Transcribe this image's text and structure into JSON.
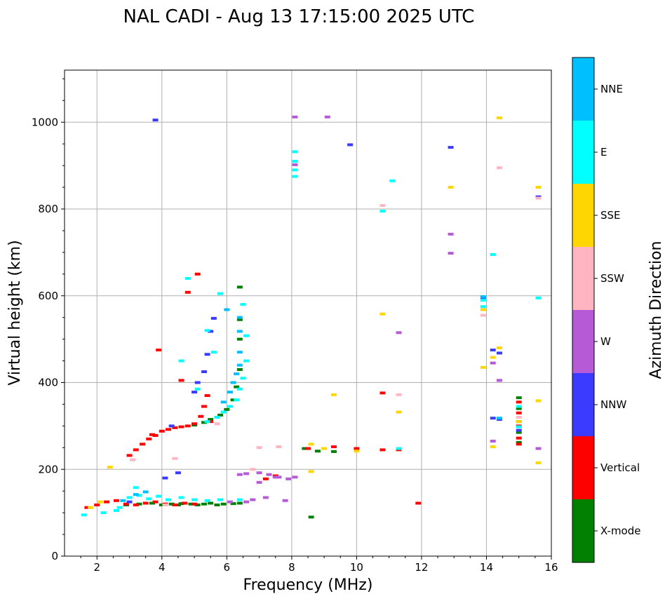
{
  "chart_data": {
    "type": "scatter",
    "title": "NAL CADI - Aug 13 17:15:00 2025 UTC",
    "xlabel": "Frequency (MHz)",
    "ylabel": "Virtual height (km)",
    "xlim": [
      1,
      16
    ],
    "ylim": [
      0,
      1120
    ],
    "xticks": [
      2,
      4,
      6,
      8,
      10,
      12,
      14,
      16
    ],
    "yticks": [
      0,
      200,
      400,
      600,
      800,
      1000
    ],
    "grid": true,
    "colorbar": {
      "label": "Azimuth Direction",
      "categories": [
        {
          "name": "X-mode",
          "color": "#008000"
        },
        {
          "name": "Vertical",
          "color": "#ff0000"
        },
        {
          "name": "NNW",
          "color": "#3b3bff"
        },
        {
          "name": "W",
          "color": "#b65ad8"
        },
        {
          "name": "SSW",
          "color": "#ffb6c1"
        },
        {
          "name": "SSE",
          "color": "#ffd700"
        },
        {
          "name": "E",
          "color": "#00ffff"
        },
        {
          "name": "NNE",
          "color": "#00bfff"
        }
      ]
    },
    "series": [
      {
        "name": "X-mode",
        "points": [
          [
            2.9,
            118
          ],
          [
            3.3,
            120
          ],
          [
            3.7,
            122
          ],
          [
            4.0,
            118
          ],
          [
            4.3,
            120
          ],
          [
            4.6,
            121
          ],
          [
            4.9,
            120
          ],
          [
            5.1,
            118
          ],
          [
            5.3,
            120
          ],
          [
            5.5,
            122
          ],
          [
            5.7,
            118
          ],
          [
            5.9,
            120
          ],
          [
            6.2,
            121
          ],
          [
            6.4,
            122
          ],
          [
            5.0,
            302
          ],
          [
            5.3,
            308
          ],
          [
            5.5,
            315
          ],
          [
            5.8,
            325
          ],
          [
            6.0,
            338
          ],
          [
            6.2,
            360
          ],
          [
            6.3,
            390
          ],
          [
            6.4,
            430
          ],
          [
            6.4,
            500
          ],
          [
            6.4,
            545
          ],
          [
            6.4,
            620
          ],
          [
            8.4,
            248
          ],
          [
            8.8,
            242
          ],
          [
            9.3,
            241
          ],
          [
            8.6,
            90
          ],
          [
            15.0,
            262
          ],
          [
            15.0,
            285
          ],
          [
            15.0,
            310
          ],
          [
            15.0,
            340
          ],
          [
            15.0,
            365
          ],
          [
            4.7,
            122
          ],
          [
            4.5,
            118
          ]
        ]
      },
      {
        "name": "Vertical",
        "points": [
          [
            1.7,
            112
          ],
          [
            2.0,
            118
          ],
          [
            2.3,
            125
          ],
          [
            2.6,
            128
          ],
          [
            2.9,
            120
          ],
          [
            3.2,
            118
          ],
          [
            3.5,
            122
          ],
          [
            3.8,
            125
          ],
          [
            4.1,
            120
          ],
          [
            4.4,
            118
          ],
          [
            4.7,
            122
          ],
          [
            5.0,
            120
          ],
          [
            3.0,
            232
          ],
          [
            3.2,
            245
          ],
          [
            3.4,
            258
          ],
          [
            3.6,
            270
          ],
          [
            3.8,
            278
          ],
          [
            4.0,
            288
          ],
          [
            4.2,
            292
          ],
          [
            4.4,
            296
          ],
          [
            4.6,
            298
          ],
          [
            4.8,
            300
          ],
          [
            5.0,
            305
          ],
          [
            5.2,
            322
          ],
          [
            5.3,
            345
          ],
          [
            5.4,
            370
          ],
          [
            3.9,
            475
          ],
          [
            4.6,
            405
          ],
          [
            4.8,
            608
          ],
          [
            5.1,
            650
          ],
          [
            7.2,
            178
          ],
          [
            7.5,
            185
          ],
          [
            8.5,
            248
          ],
          [
            9.3,
            252
          ],
          [
            10.0,
            248
          ],
          [
            10.8,
            245
          ],
          [
            10.8,
            376
          ],
          [
            11.3,
            245
          ],
          [
            11.9,
            122
          ],
          [
            15.0,
            258
          ],
          [
            15.0,
            272
          ],
          [
            15.0,
            300
          ],
          [
            15.0,
            330
          ],
          [
            15.0,
            355
          ],
          [
            5.5,
            310
          ],
          [
            3.7,
            280
          ]
        ]
      },
      {
        "name": "NNW",
        "points": [
          [
            3.8,
            1005
          ],
          [
            9.8,
            948
          ],
          [
            12.9,
            942
          ],
          [
            13.9,
            595
          ],
          [
            14.2,
            475
          ],
          [
            14.4,
            468
          ],
          [
            14.2,
            318
          ],
          [
            14.4,
            315
          ],
          [
            5.0,
            378
          ],
          [
            5.1,
            400
          ],
          [
            5.3,
            425
          ],
          [
            5.4,
            465
          ],
          [
            5.5,
            518
          ],
          [
            5.6,
            548
          ],
          [
            3.0,
            125
          ],
          [
            4.1,
            180
          ],
          [
            4.5,
            192
          ],
          [
            15.6,
            828
          ],
          [
            15.0,
            290
          ],
          [
            4.3,
            300
          ]
        ]
      },
      {
        "name": "W",
        "points": [
          [
            8.1,
            1012
          ],
          [
            9.1,
            1012
          ],
          [
            8.1,
            902
          ],
          [
            12.9,
            742
          ],
          [
            12.9,
            698
          ],
          [
            14.4,
            405
          ],
          [
            14.2,
            445
          ],
          [
            14.2,
            265
          ],
          [
            6.6,
            190
          ],
          [
            7.0,
            192
          ],
          [
            7.3,
            188
          ],
          [
            7.6,
            182
          ],
          [
            7.9,
            178
          ],
          [
            6.8,
            130
          ],
          [
            7.2,
            135
          ],
          [
            6.1,
            125
          ],
          [
            6.6,
            125
          ],
          [
            15.6,
            248
          ],
          [
            6.4,
            188
          ],
          [
            7.5,
            182
          ],
          [
            7.8,
            128
          ],
          [
            11.3,
            515
          ],
          [
            7.0,
            170
          ],
          [
            8.1,
            182
          ]
        ]
      },
      {
        "name": "SSW",
        "points": [
          [
            10.8,
            808
          ],
          [
            14.4,
            895
          ],
          [
            13.9,
            555
          ],
          [
            15.6,
            825
          ],
          [
            4.4,
            225
          ],
          [
            3.1,
            222
          ],
          [
            7.0,
            250
          ],
          [
            7.6,
            252
          ],
          [
            4.1,
            118
          ],
          [
            5.7,
            305
          ],
          [
            11.3,
            372
          ],
          [
            15.0,
            320
          ],
          [
            6.8,
            200
          ]
        ]
      },
      {
        "name": "SSE",
        "points": [
          [
            14.4,
            1010
          ],
          [
            12.9,
            850
          ],
          [
            15.6,
            850
          ],
          [
            15.6,
            358
          ],
          [
            15.6,
            215
          ],
          [
            14.4,
            480
          ],
          [
            14.2,
            458
          ],
          [
            13.9,
            435
          ],
          [
            14.2,
            252
          ],
          [
            8.6,
            258
          ],
          [
            9.0,
            248
          ],
          [
            9.3,
            372
          ],
          [
            11.3,
            332
          ],
          [
            8.6,
            195
          ],
          [
            1.8,
            112
          ],
          [
            2.1,
            125
          ],
          [
            10.0,
            242
          ],
          [
            10.8,
            558
          ],
          [
            2.4,
            205
          ],
          [
            15.0,
            310
          ],
          [
            13.9,
            568
          ]
        ]
      },
      {
        "name": "E",
        "points": [
          [
            11.1,
            865
          ],
          [
            10.8,
            795
          ],
          [
            14.2,
            695
          ],
          [
            15.6,
            595
          ],
          [
            13.9,
            575
          ],
          [
            13.9,
            590
          ],
          [
            5.8,
            605
          ],
          [
            6.5,
            580
          ],
          [
            6.6,
            508
          ],
          [
            6.6,
            450
          ],
          [
            6.5,
            410
          ],
          [
            6.4,
            385
          ],
          [
            6.3,
            360
          ],
          [
            6.1,
            345
          ],
          [
            5.9,
            332
          ],
          [
            5.7,
            320
          ],
          [
            5.4,
            310
          ],
          [
            1.6,
            95
          ],
          [
            2.2,
            100
          ],
          [
            2.7,
            112
          ],
          [
            3.0,
            135
          ],
          [
            3.3,
            140
          ],
          [
            3.6,
            132
          ],
          [
            3.9,
            138
          ],
          [
            4.2,
            130
          ],
          [
            4.6,
            135
          ],
          [
            5.0,
            130
          ],
          [
            5.4,
            128
          ],
          [
            5.8,
            130
          ],
          [
            6.4,
            130
          ],
          [
            8.1,
            875
          ],
          [
            8.1,
            890
          ],
          [
            8.1,
            910
          ],
          [
            8.1,
            932
          ],
          [
            5.4,
            520
          ],
          [
            5.6,
            470
          ],
          [
            5.1,
            385
          ],
          [
            4.6,
            450
          ],
          [
            15.0,
            298
          ],
          [
            15.0,
            345
          ],
          [
            3.2,
            158
          ],
          [
            2.6,
            105
          ],
          [
            11.3,
            248
          ],
          [
            4.8,
            640
          ]
        ]
      },
      {
        "name": "NNE",
        "points": [
          [
            6.0,
            568
          ],
          [
            6.4,
            550
          ],
          [
            6.4,
            518
          ],
          [
            6.4,
            470
          ],
          [
            6.4,
            440
          ],
          [
            6.3,
            420
          ],
          [
            6.2,
            400
          ],
          [
            6.1,
            378
          ],
          [
            3.2,
            142
          ],
          [
            3.5,
            148
          ],
          [
            2.8,
            128
          ],
          [
            13.9,
            598
          ],
          [
            14.4,
            318
          ],
          [
            5.9,
            355
          ]
        ]
      }
    ]
  }
}
